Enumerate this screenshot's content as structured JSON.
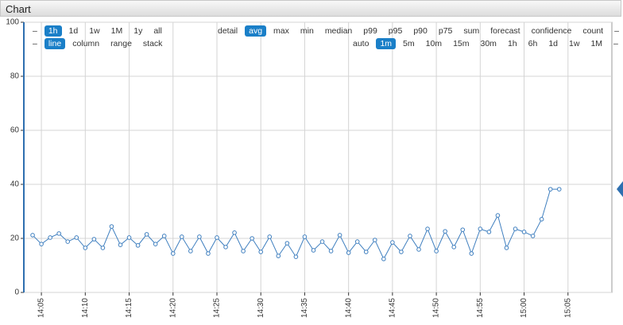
{
  "panel_title": "Chart",
  "toolbar": {
    "range": {
      "items": [
        "–",
        "1h",
        "1d",
        "1w",
        "1M",
        "1y",
        "all"
      ],
      "active": 1
    },
    "aggregate": {
      "items": [
        "detail",
        "avg",
        "max",
        "min",
        "median",
        "p99",
        "p95",
        "p90",
        "p75",
        "sum",
        "forecast",
        "confidence",
        "count",
        "–"
      ],
      "active": 1
    },
    "style": {
      "items": [
        "–",
        "line",
        "column",
        "range",
        "stack"
      ],
      "active": 1
    },
    "interval": {
      "items": [
        "auto",
        "1m",
        "5m",
        "10m",
        "15m",
        "30m",
        "1h",
        "6h",
        "1d",
        "1w",
        "1M",
        "–"
      ],
      "active": 1
    }
  },
  "chart_data": {
    "type": "line",
    "x": [
      "14:04",
      "14:05",
      "14:06",
      "14:07",
      "14:08",
      "14:09",
      "14:10",
      "14:11",
      "14:12",
      "14:13",
      "14:14",
      "14:15",
      "14:16",
      "14:17",
      "14:18",
      "14:19",
      "14:20",
      "14:21",
      "14:22",
      "14:23",
      "14:24",
      "14:25",
      "14:26",
      "14:27",
      "14:28",
      "14:29",
      "14:30",
      "14:31",
      "14:32",
      "14:33",
      "14:34",
      "14:35",
      "14:36",
      "14:37",
      "14:38",
      "14:39",
      "14:40",
      "14:41",
      "14:42",
      "14:43",
      "14:44",
      "14:45",
      "14:46",
      "14:47",
      "14:48",
      "14:49",
      "14:50",
      "14:51",
      "14:52",
      "14:53",
      "14:54",
      "14:55",
      "14:56",
      "14:57",
      "14:58",
      "14:59",
      "15:00",
      "15:01",
      "15:02",
      "15:03",
      "15:04"
    ],
    "series": [
      {
        "color": "#3f7fbf",
        "values": [
          21.2,
          17.9,
          20.3,
          21.8,
          18.8,
          20.3,
          16.5,
          19.7,
          16.5,
          24.4,
          17.6,
          20.3,
          17.4,
          21.5,
          17.9,
          20.9,
          14.4,
          20.6,
          15.3,
          20.6,
          14.4,
          20.3,
          16.8,
          22.1,
          15.3,
          20.0,
          15.0,
          20.6,
          13.5,
          18.2,
          13.2,
          20.6,
          15.6,
          18.8,
          15.3,
          21.2,
          14.7,
          18.8,
          15.0,
          19.4,
          12.4,
          18.5,
          15.0,
          20.9,
          15.9,
          23.5,
          15.3,
          22.6,
          16.8,
          23.2,
          14.4,
          23.5,
          22.4,
          28.5,
          16.5,
          23.5,
          22.4,
          20.9,
          27.1,
          38.2,
          38.2
        ]
      }
    ],
    "xlim": [
      "14:03",
      "15:10"
    ],
    "xticks": [
      "14:05",
      "14:10",
      "14:15",
      "14:20",
      "14:25",
      "14:30",
      "14:35",
      "14:40",
      "14:45",
      "14:50",
      "14:55",
      "15:00",
      "15:05"
    ],
    "ylim": [
      0,
      100
    ],
    "yticks": [
      0,
      20,
      40,
      60,
      80,
      100
    ],
    "grid": true
  }
}
